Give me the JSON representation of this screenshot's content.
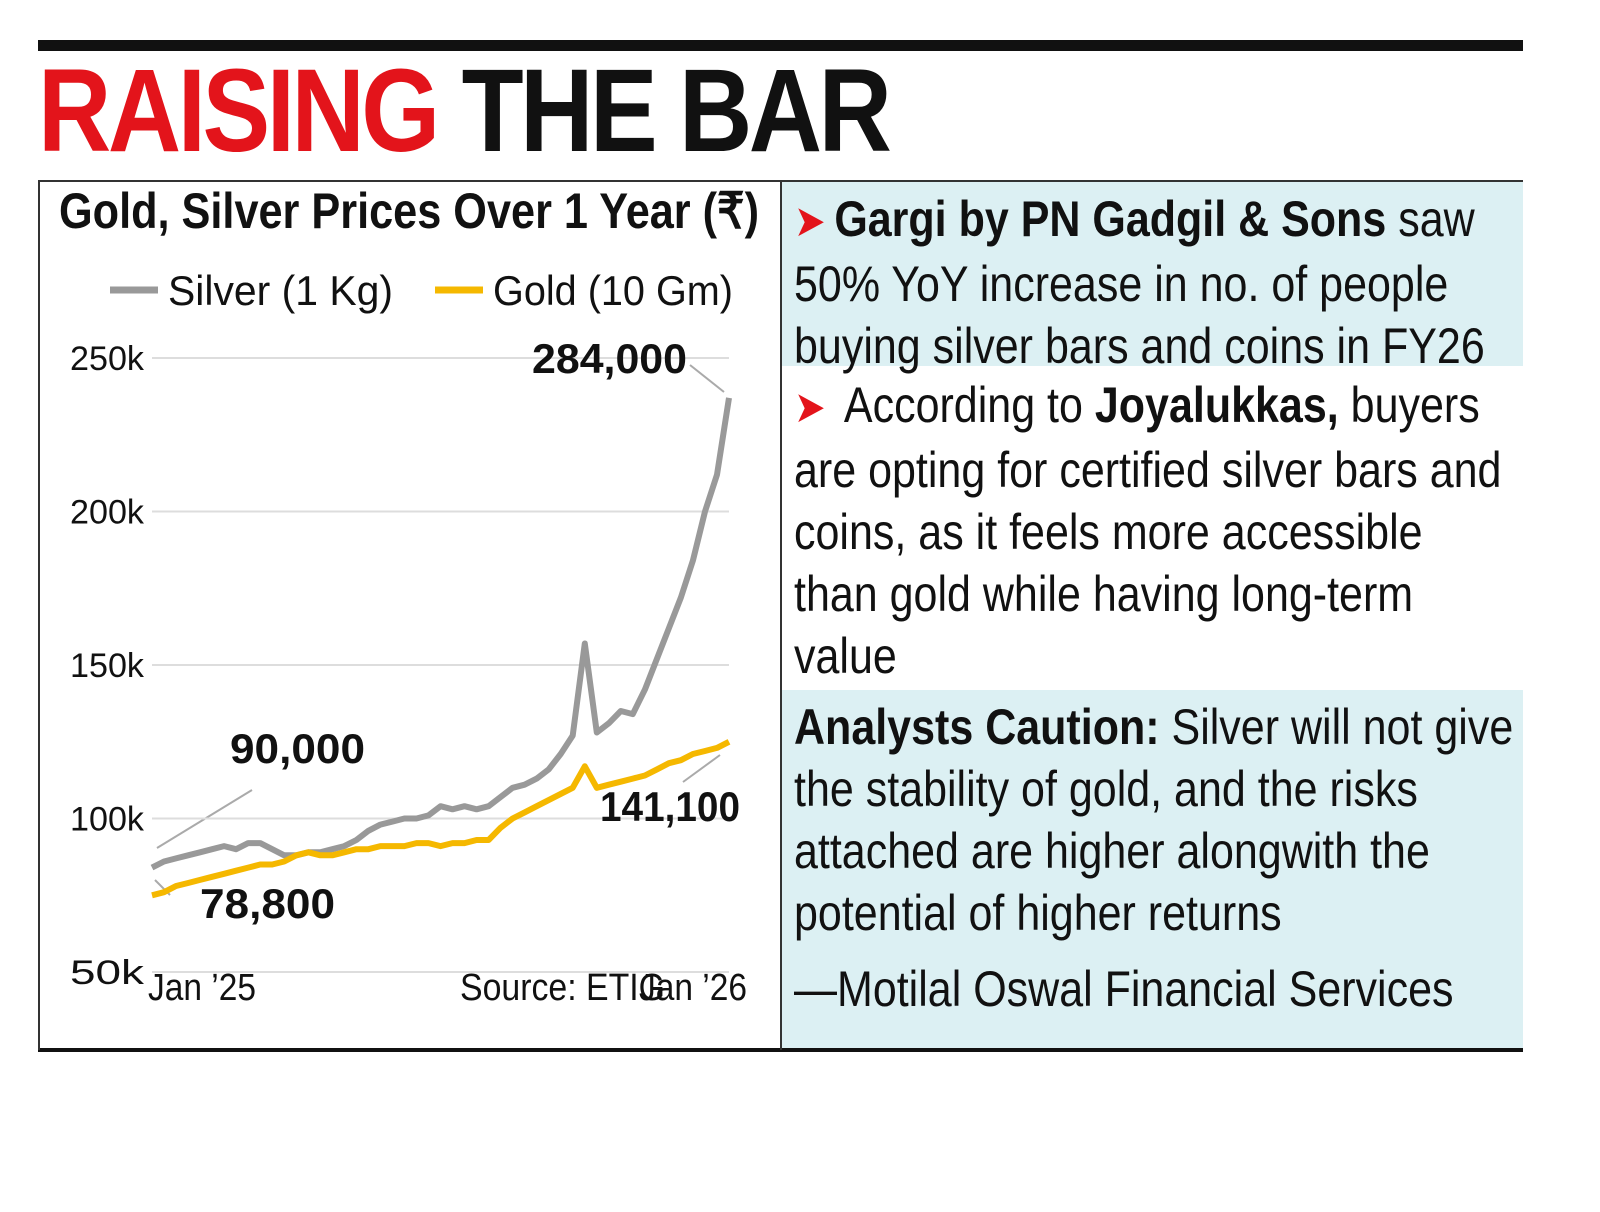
{
  "headline": {
    "part1": "RAISING",
    "part2": "THE BAR"
  },
  "chart_data": {
    "type": "line",
    "title": "Gold, Silver Prices Over 1 Year (₹)",
    "x": [
      0,
      0.25,
      0.5,
      0.75,
      1,
      1.25,
      1.5,
      1.75,
      2,
      2.25,
      2.5,
      2.75,
      3,
      3.25,
      3.5,
      3.75,
      4,
      4.25,
      4.5,
      4.75,
      5,
      5.25,
      5.5,
      5.75,
      6,
      6.25,
      6.5,
      6.75,
      7,
      7.25,
      7.5,
      7.75,
      8,
      8.25,
      8.5,
      8.75,
      9,
      9.25,
      9.5,
      9.75,
      10,
      10.25,
      10.5,
      10.75,
      11,
      11.25,
      11.5,
      11.75,
      12
    ],
    "xlim": [
      0,
      12
    ],
    "xticks": [
      {
        "value": 0,
        "label": "Jan ’25"
      },
      {
        "value": 12,
        "label": "Jan ’26"
      }
    ],
    "ylim": [
      50000,
      250000
    ],
    "yticks": [
      {
        "value": 50000,
        "label": "50k"
      },
      {
        "value": 100000,
        "label": "100k"
      },
      {
        "value": 150000,
        "label": "150k"
      },
      {
        "value": 200000,
        "label": "200k"
      },
      {
        "value": 250000,
        "label": "250k"
      }
    ],
    "grid": true,
    "series": [
      {
        "name": "Silver (1 Kg)",
        "color": "#999999",
        "values": [
          84000,
          86000,
          87000,
          88000,
          89000,
          90000,
          91000,
          90000,
          92000,
          92000,
          90000,
          88000,
          88000,
          89000,
          89000,
          90000,
          91000,
          93000,
          96000,
          98000,
          99000,
          100000,
          100000,
          101000,
          104000,
          103000,
          104000,
          103000,
          104000,
          107000,
          110000,
          111000,
          113000,
          116000,
          121000,
          127000,
          157000,
          128000,
          131000,
          135000,
          134000,
          142000,
          152000,
          162000,
          172000,
          184000,
          200000,
          212000,
          237000
        ]
      },
      {
        "name": "Gold (10 Gm)",
        "color": "#f5b800",
        "values": [
          75000,
          76000,
          78000,
          79000,
          80000,
          81000,
          82000,
          83000,
          84000,
          85000,
          85000,
          86000,
          88000,
          89000,
          88000,
          88000,
          89000,
          90000,
          90000,
          91000,
          91000,
          91000,
          92000,
          92000,
          91000,
          92000,
          92000,
          93000,
          93000,
          97000,
          100000,
          102000,
          104000,
          106000,
          108000,
          110000,
          117000,
          110000,
          111000,
          112000,
          113000,
          114000,
          116000,
          118000,
          119000,
          121000,
          122000,
          123000,
          125000
        ]
      }
    ],
    "annotations": [
      "284,000",
      "90,000",
      "78,800",
      "141,100"
    ],
    "source": "Source: ETIG"
  },
  "panels": [
    {
      "bold": "Gargi by PN Gadgil & Sons",
      "text": "saw 50% YoY increase in no. of people buying silver bars and coins in FY26"
    },
    {
      "lead": "According to",
      "bold": "Joyalukkas,",
      "text": "buyers are opting for certified silver bars and coins, as it feels more accessible than gold while having long-term value"
    },
    {
      "bold": "Analysts Caution:",
      "text": "Silver will not give the stability of gold, and the risks attached are higher alongwith the potential of higher returns",
      "attribution": "—Motilal Oswal Financial Services"
    }
  ]
}
